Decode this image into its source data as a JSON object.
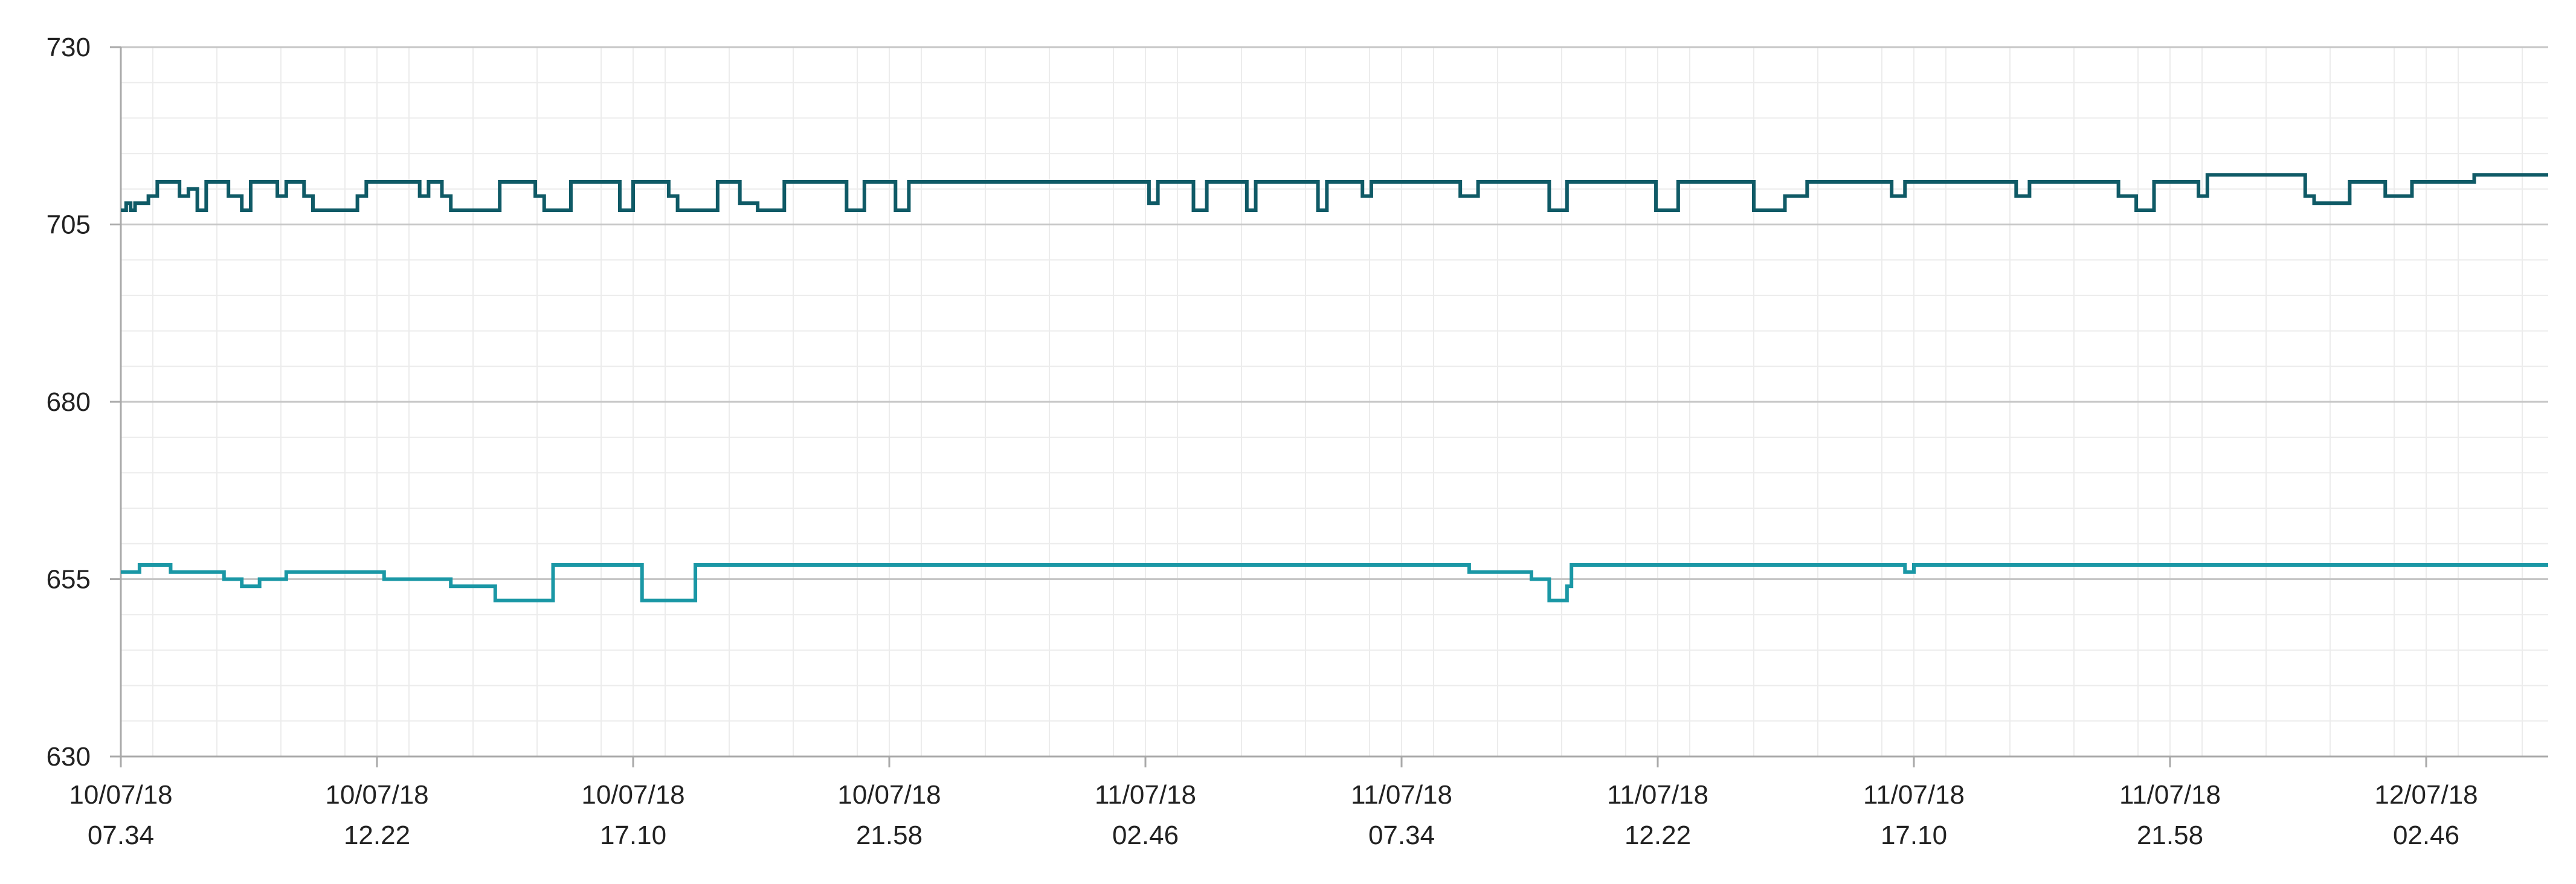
{
  "chart_data": {
    "type": "line",
    "title": "",
    "xlabel": "",
    "ylabel": "",
    "ylim": [
      630,
      730
    ],
    "y_ticks": [
      630,
      655,
      680,
      705,
      730
    ],
    "grid": true,
    "legend": "none",
    "x_ticks": [
      {
        "date": "10/07/18",
        "time": "07.34"
      },
      {
        "date": "10/07/18",
        "time": "12.22"
      },
      {
        "date": "10/07/18",
        "time": "17.10"
      },
      {
        "date": "10/07/18",
        "time": "21.58"
      },
      {
        "date": "11/07/18",
        "time": "02.46"
      },
      {
        "date": "11/07/18",
        "time": "07.34"
      },
      {
        "date": "11/07/18",
        "time": "12.22"
      },
      {
        "date": "11/07/18",
        "time": "17.10"
      },
      {
        "date": "11/07/18",
        "time": "21.58"
      },
      {
        "date": "12/07/18",
        "time": "02.46"
      }
    ],
    "series": [
      {
        "color": "#0f5a66",
        "points": [
          [
            "10/07/18 07.34",
            707
          ],
          [
            "10/07/18 07.40",
            708
          ],
          [
            "10/07/18 07.45",
            707
          ],
          [
            "10/07/18 07.50",
            708
          ],
          [
            "10/07/18 08.05",
            709
          ],
          [
            "10/07/18 08.15",
            711
          ],
          [
            "10/07/18 08.40",
            709
          ],
          [
            "10/07/18 08.50",
            710
          ],
          [
            "10/07/18 09.00",
            707
          ],
          [
            "10/07/18 09.10",
            711
          ],
          [
            "10/07/18 09.35",
            709
          ],
          [
            "10/07/18 09.50",
            707
          ],
          [
            "10/07/18 10.00",
            711
          ],
          [
            "10/07/18 10.30",
            709
          ],
          [
            "10/07/18 10.40",
            711
          ],
          [
            "10/07/18 11.00",
            709
          ],
          [
            "10/07/18 11.10",
            707
          ],
          [
            "10/07/18 12.00",
            709
          ],
          [
            "10/07/18 12.10",
            711
          ],
          [
            "10/07/18 13.10",
            709
          ],
          [
            "10/07/18 13.20",
            711
          ],
          [
            "10/07/18 13.35",
            709
          ],
          [
            "10/07/18 13.45",
            707
          ],
          [
            "10/07/18 14.40",
            711
          ],
          [
            "10/07/18 15.20",
            709
          ],
          [
            "10/07/18 15.30",
            707
          ],
          [
            "10/07/18 16.00",
            711
          ],
          [
            "10/07/18 16.55",
            707
          ],
          [
            "10/07/18 17.10",
            711
          ],
          [
            "10/07/18 17.50",
            709
          ],
          [
            "10/07/18 18.00",
            707
          ],
          [
            "10/07/18 18.45",
            711
          ],
          [
            "10/07/18 19.10",
            708
          ],
          [
            "10/07/18 19.30",
            707
          ],
          [
            "10/07/18 20.00",
            711
          ],
          [
            "10/07/18 21.10",
            707
          ],
          [
            "10/07/18 21.30",
            711
          ],
          [
            "10/07/18 22.05",
            707
          ],
          [
            "10/07/18 22.20",
            711
          ],
          [
            "11/07/18 02.50",
            708
          ],
          [
            "11/07/18 03.00",
            711
          ],
          [
            "11/07/18 03.40",
            707
          ],
          [
            "11/07/18 03.55",
            711
          ],
          [
            "11/07/18 04.40",
            707
          ],
          [
            "11/07/18 04.50",
            711
          ],
          [
            "11/07/18 06.00",
            707
          ],
          [
            "11/07/18 06.10",
            711
          ],
          [
            "11/07/18 06.50",
            709
          ],
          [
            "11/07/18 07.00",
            711
          ],
          [
            "11/07/18 08.40",
            709
          ],
          [
            "11/07/18 09.00",
            711
          ],
          [
            "11/07/18 10.20",
            707
          ],
          [
            "11/07/18 10.40",
            711
          ],
          [
            "11/07/18 12.20",
            707
          ],
          [
            "11/07/18 12.45",
            711
          ],
          [
            "11/07/18 14.10",
            707
          ],
          [
            "11/07/18 14.45",
            709
          ],
          [
            "11/07/18 15.10",
            711
          ],
          [
            "11/07/18 16.45",
            709
          ],
          [
            "11/07/18 17.00",
            711
          ],
          [
            "11/07/18 19.05",
            709
          ],
          [
            "11/07/18 19.20",
            711
          ],
          [
            "11/07/18 21.00",
            709
          ],
          [
            "11/07/18 21.20",
            707
          ],
          [
            "11/07/18 21.40",
            711
          ],
          [
            "11/07/18 22.30",
            709
          ],
          [
            "11/07/18 22.40",
            712
          ],
          [
            "12/07/18 00.30",
            709
          ],
          [
            "12/07/18 00.40",
            708
          ],
          [
            "12/07/18 01.20",
            711
          ],
          [
            "12/07/18 02.00",
            709
          ],
          [
            "12/07/18 02.30",
            711
          ],
          [
            "12/07/18 03.40",
            712
          ]
        ]
      },
      {
        "color": "#1a97a5",
        "points": [
          [
            "10/07/18 07.34",
            656
          ],
          [
            "10/07/18 07.55",
            657
          ],
          [
            "10/07/18 08.30",
            656
          ],
          [
            "10/07/18 09.30",
            655
          ],
          [
            "10/07/18 09.50",
            654
          ],
          [
            "10/07/18 10.10",
            655
          ],
          [
            "10/07/18 10.40",
            656
          ],
          [
            "10/07/18 12.30",
            655
          ],
          [
            "10/07/18 13.45",
            654
          ],
          [
            "10/07/18 14.35",
            652
          ],
          [
            "10/07/18 15.40",
            657
          ],
          [
            "10/07/18 17.20",
            652
          ],
          [
            "10/07/18 18.20",
            657
          ],
          [
            "11/07/18 08.50",
            656
          ],
          [
            "11/07/18 10.00",
            655
          ],
          [
            "11/07/18 10.20",
            652
          ],
          [
            "11/07/18 10.40",
            654
          ],
          [
            "11/07/18 10.45",
            657
          ],
          [
            "11/07/18 17.00",
            656
          ],
          [
            "11/07/18 17.10",
            657
          ],
          [
            "12/07/18 03.40",
            657
          ]
        ]
      }
    ]
  }
}
